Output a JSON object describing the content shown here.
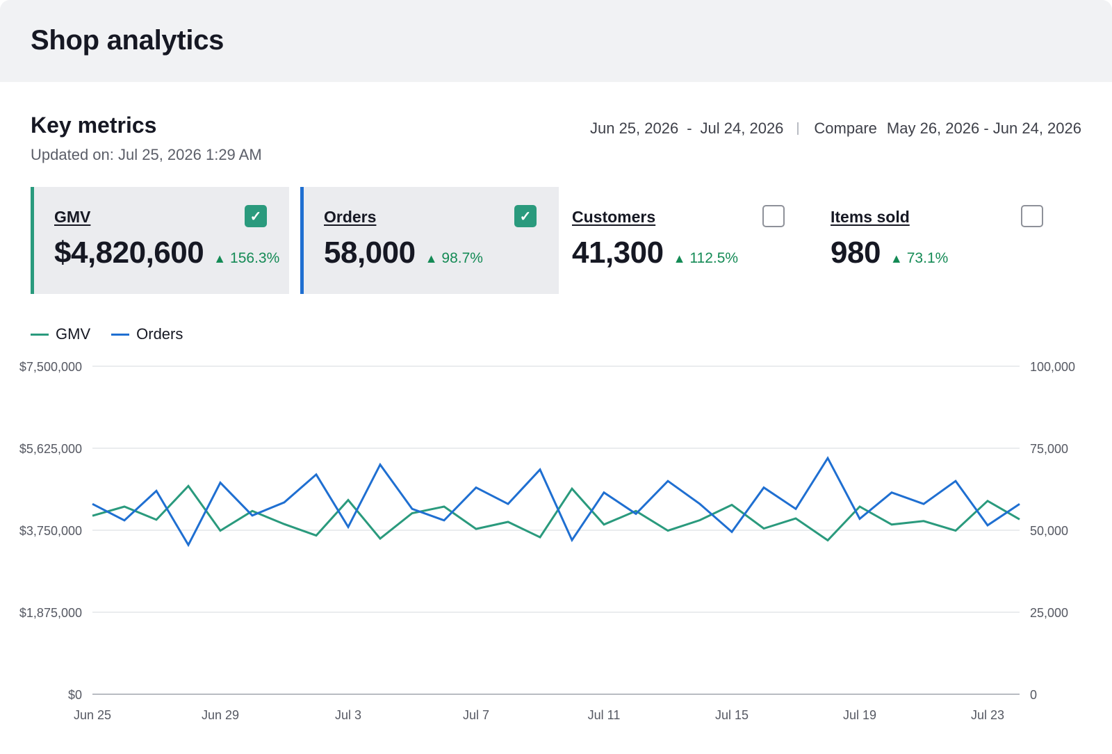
{
  "header": {
    "title": "Shop analytics"
  },
  "section": {
    "title": "Key metrics",
    "updated": "Updated on: Jul 25, 2026 1:29 AM"
  },
  "date_range": {
    "start": "Jun 25, 2026",
    "separator": "-",
    "end": "Jul 24, 2026",
    "compare_label": "Compare",
    "compare_range": "May 26, 2026 - Jun 24, 2026"
  },
  "metrics": [
    {
      "label": "GMV",
      "value": "$4,820,600",
      "delta": "156.3%",
      "delta_icon": "up-triangle-icon",
      "selected": true,
      "accent": "#2a9a7d"
    },
    {
      "label": "Orders",
      "value": "58,000",
      "delta": "98.7%",
      "delta_icon": "up-triangle-icon",
      "selected": true,
      "accent": "#1f6fd1"
    },
    {
      "label": "Customers",
      "value": "41,300",
      "delta": "112.5%",
      "delta_icon": "up-triangle-icon",
      "selected": false,
      "accent": ""
    },
    {
      "label": "Items sold",
      "value": "980",
      "delta": "73.1%",
      "delta_icon": "up-triangle-icon",
      "selected": false,
      "accent": ""
    }
  ],
  "chart_data": {
    "type": "line",
    "x": [
      "Jun 25",
      "Jun 26",
      "Jun 27",
      "Jun 28",
      "Jun 29",
      "Jun 30",
      "Jul 1",
      "Jul 2",
      "Jul 3",
      "Jul 4",
      "Jul 5",
      "Jul 6",
      "Jul 7",
      "Jul 8",
      "Jul 9",
      "Jul 10",
      "Jul 11",
      "Jul 12",
      "Jul 13",
      "Jul 14",
      "Jul 15",
      "Jul 16",
      "Jul 17",
      "Jul 18",
      "Jul 19",
      "Jul 20",
      "Jul 21",
      "Jul 22",
      "Jul 23",
      "Jul 24"
    ],
    "x_ticks": [
      "Jun 25",
      "Jun 29",
      "Jul 3",
      "Jul 7",
      "Jul 11",
      "Jul 15",
      "Jul 19",
      "Jul 23"
    ],
    "series": [
      {
        "name": "GMV",
        "axis": "left",
        "color": "#2a9a7d",
        "values": [
          4080000,
          4290000,
          3990000,
          4760000,
          3740000,
          4190000,
          3890000,
          3630000,
          4440000,
          3560000,
          4140000,
          4290000,
          3780000,
          3940000,
          3590000,
          4700000,
          3880000,
          4190000,
          3740000,
          3980000,
          4330000,
          3790000,
          4020000,
          3520000,
          4290000,
          3880000,
          3960000,
          3740000,
          4420000,
          4000000
        ]
      },
      {
        "name": "Orders",
        "axis": "right",
        "color": "#1f6fd1",
        "values": [
          58000,
          53000,
          62000,
          45500,
          64500,
          54500,
          58500,
          67000,
          51000,
          70000,
          56500,
          53000,
          63000,
          58000,
          68500,
          47000,
          61500,
          55000,
          65000,
          58000,
          49500,
          63000,
          56500,
          72000,
          53500,
          61500,
          58000,
          65000,
          51500,
          58000
        ]
      }
    ],
    "y_left": {
      "ticks": [
        "$0",
        "$1,875,000",
        "$3,750,000",
        "$5,625,000",
        "$7,500,000"
      ],
      "min": 0,
      "max": 7500000
    },
    "y_right": {
      "ticks": [
        "0",
        "25,000",
        "50,000",
        "75,000",
        "100,000"
      ],
      "min": 0,
      "max": 100000
    },
    "grid": true,
    "legend": "top-left"
  }
}
